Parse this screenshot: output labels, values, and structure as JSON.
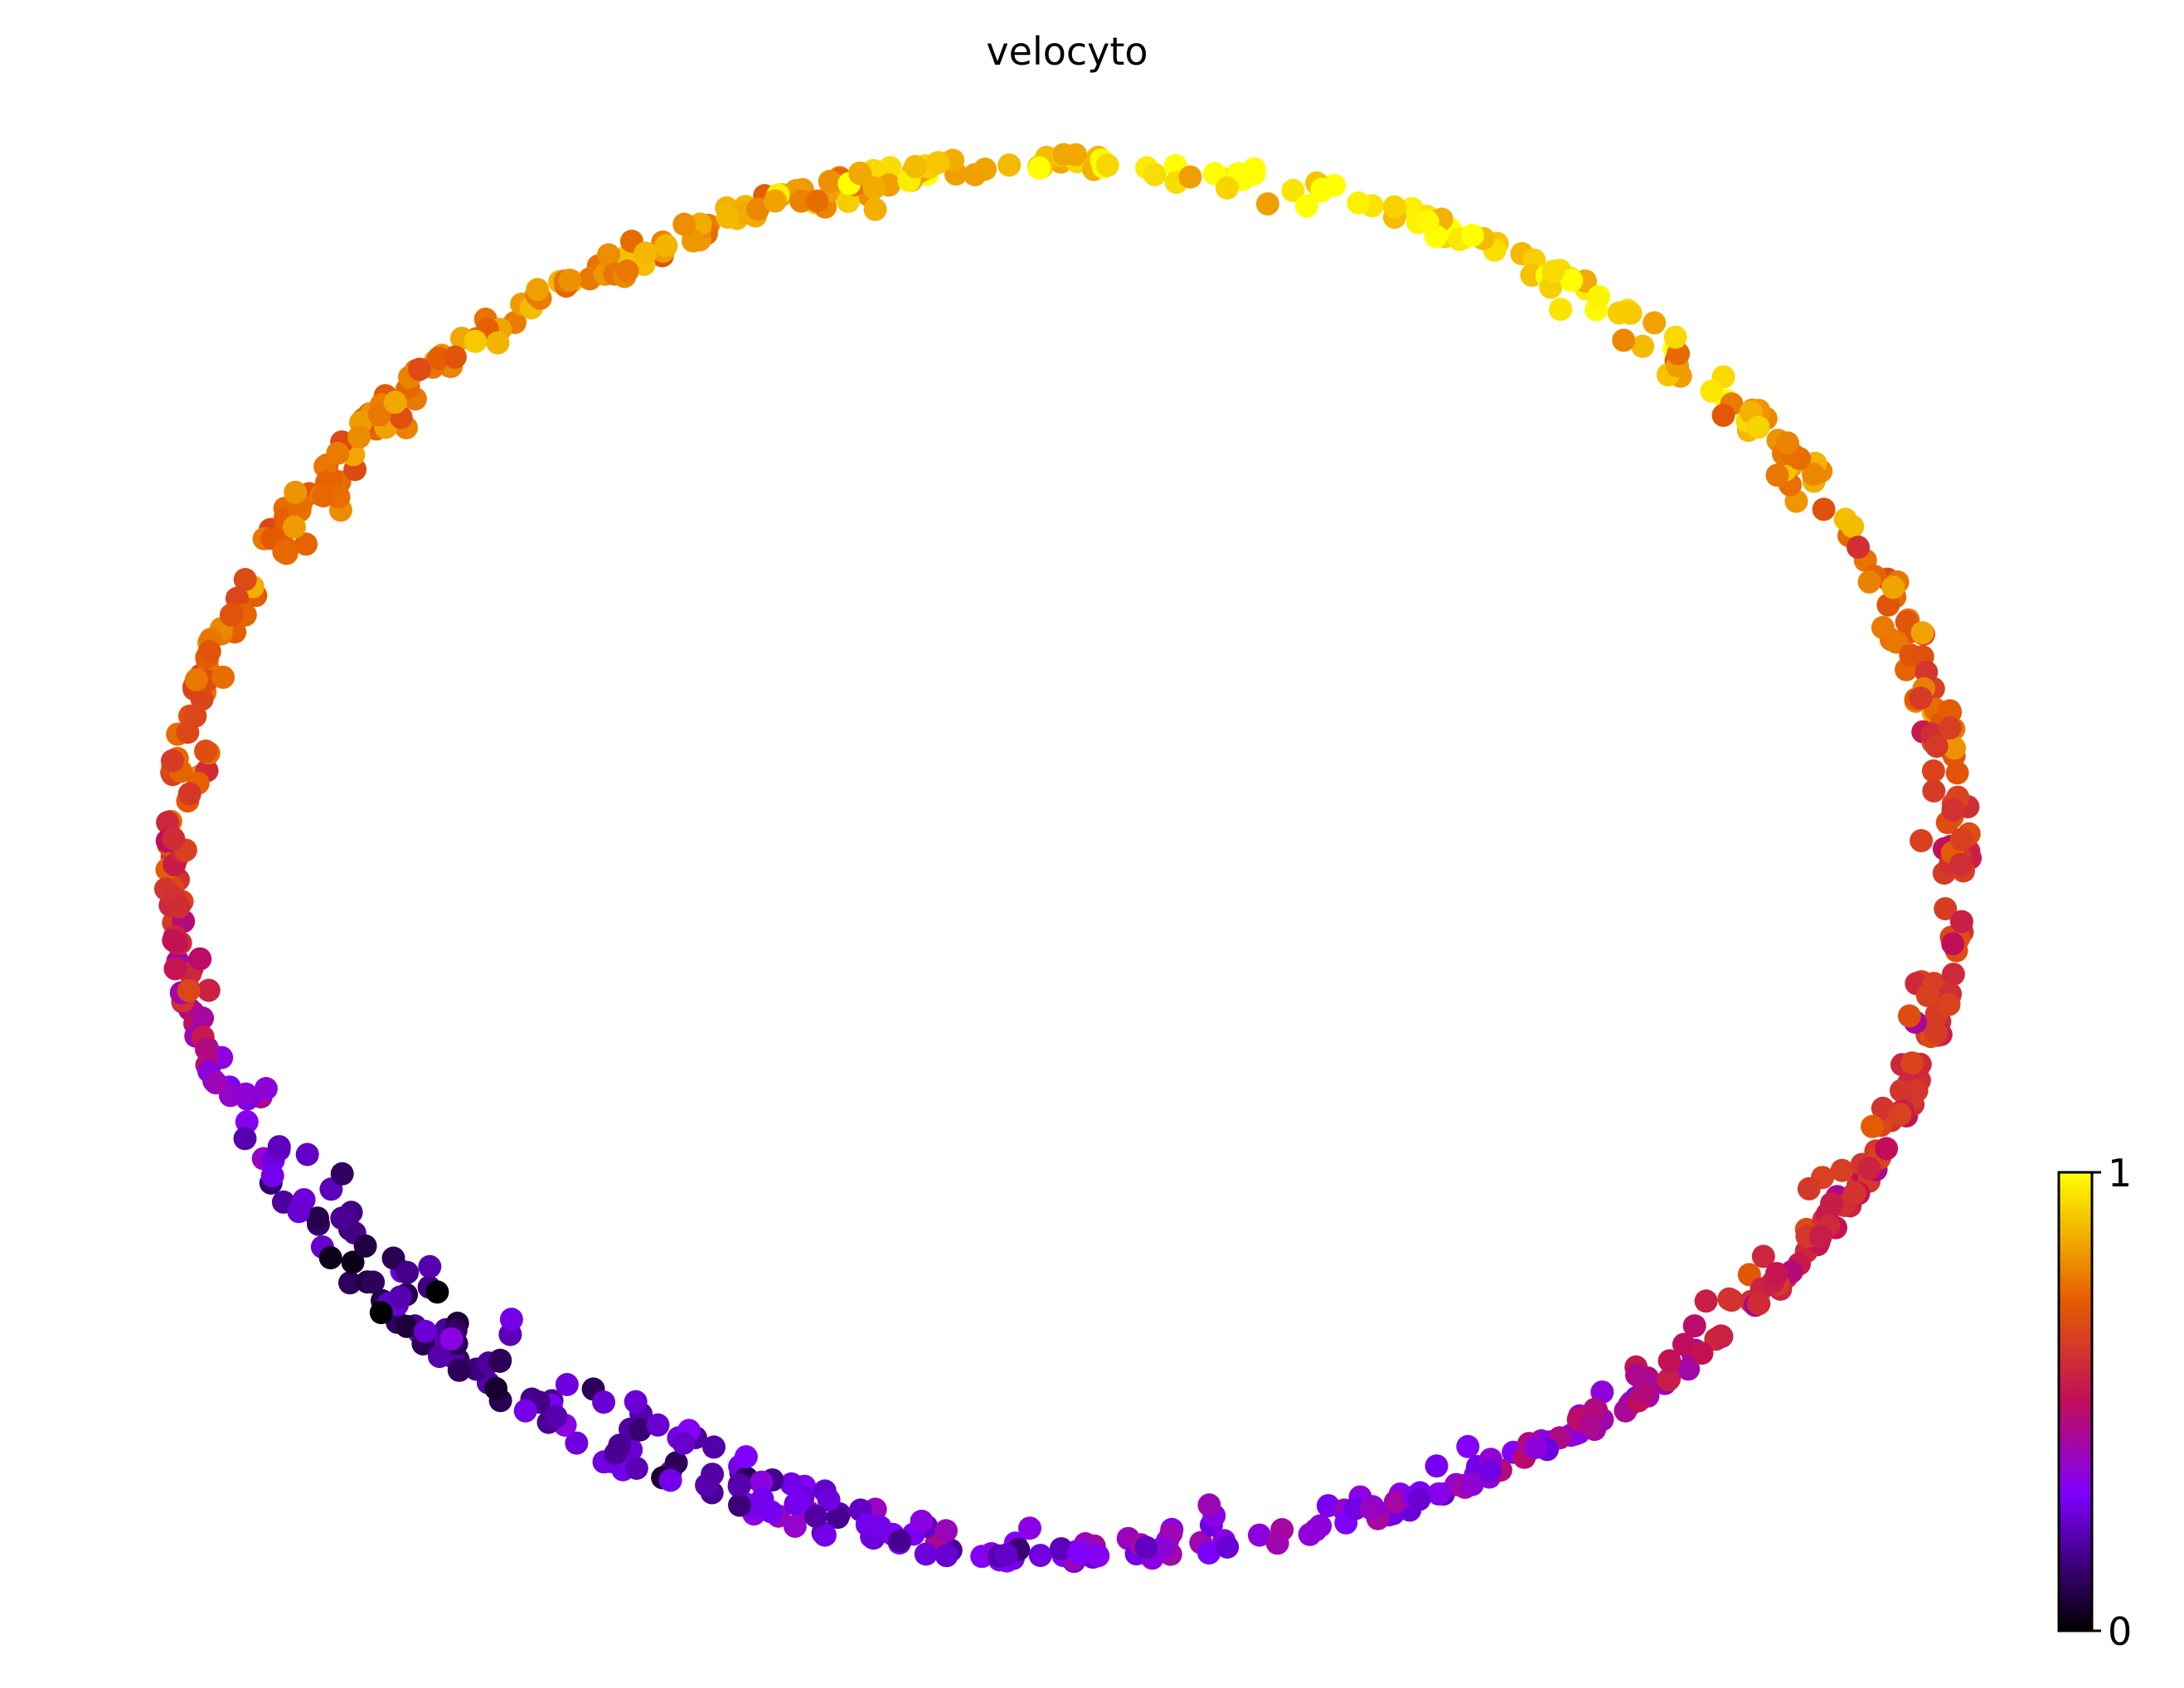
{
  "chart_data": {
    "type": "scatter",
    "title": "velocyto",
    "xlabel": "",
    "ylabel": "",
    "axes_visible": false,
    "grid": false,
    "colormap": "gnuplot",
    "colormap_stops": [
      "#000000",
      "#7f00ff",
      "#c10d5a",
      "#e55d00",
      "#ffff00"
    ],
    "colorbar": {
      "min": 0,
      "max": 1,
      "tick_labels": [
        "0",
        "1"
      ],
      "placement": "bottom-right"
    },
    "shape": "ellipse of points, value low at bottom-left rising toward the top-right",
    "points_generated_from": {
      "count": 800,
      "center": [
        0.5,
        0.5
      ],
      "value_profile": "angle-based"
    }
  }
}
